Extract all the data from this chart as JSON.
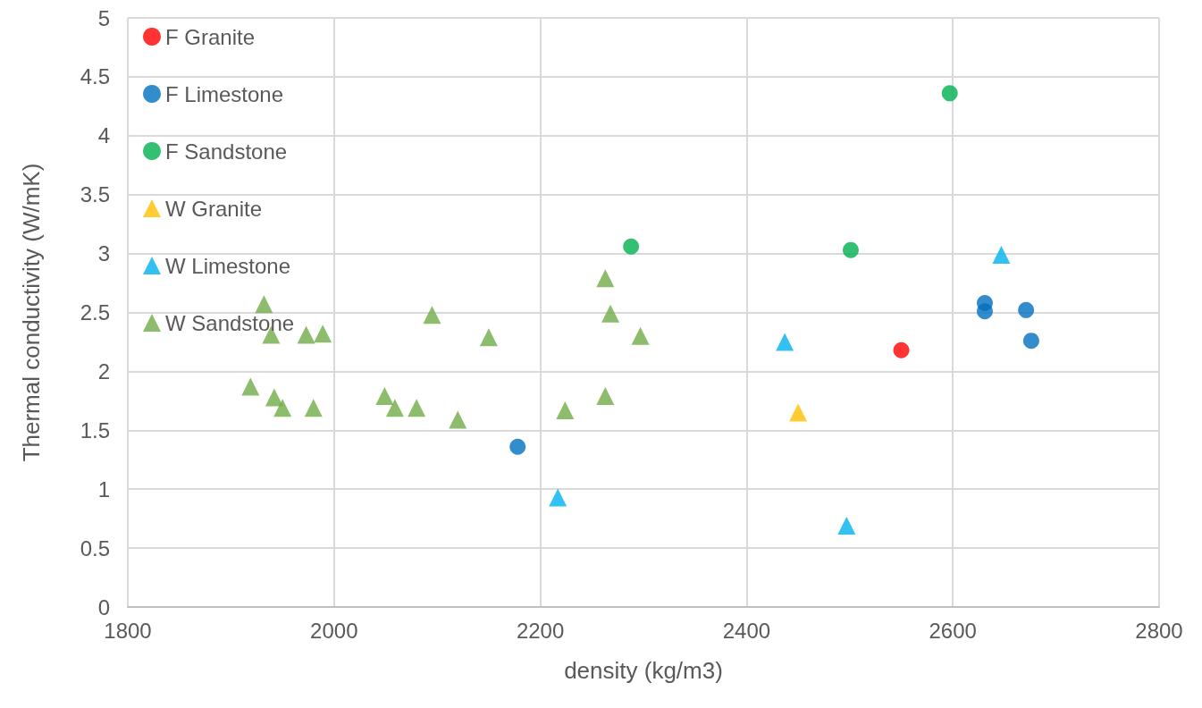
{
  "chart_data": {
    "type": "scatter",
    "xlabel": "density (kg/m3)",
    "ylabel": "Thermal conductivity (W/mK)",
    "xlim": [
      1800,
      2800
    ],
    "xticks": [
      1800,
      2000,
      2200,
      2400,
      2600,
      2800
    ],
    "ylim": [
      0,
      5
    ],
    "yticks": [
      0,
      0.5,
      1,
      1.5,
      2,
      2.5,
      3,
      3.5,
      4,
      4.5,
      5
    ],
    "grid": true,
    "legend": "top left",
    "series": [
      {
        "name": "F Granite",
        "color": "#ff0000",
        "marker": "circle",
        "x": [
          2550
        ],
        "values": [
          2.18
        ]
      },
      {
        "name": "F Limestone",
        "color": "#0070c0",
        "marker": "circle",
        "x": [
          2178,
          2631,
          2631,
          2671,
          2676
        ],
        "values": [
          1.36,
          2.58,
          2.51,
          2.52,
          2.26
        ]
      },
      {
        "name": "F Sandstone",
        "color": "#00b050",
        "marker": "circle",
        "x": [
          2288,
          2501,
          2597
        ],
        "values": [
          3.06,
          3.03,
          4.36
        ]
      },
      {
        "name": "W Granite",
        "color": "#ffc000",
        "marker": "triangle",
        "x": [
          2450
        ],
        "values": [
          1.65
        ]
      },
      {
        "name": "W Limestone",
        "color": "#00b0f0",
        "marker": "triangle",
        "x": [
          2217,
          2437,
          2497,
          2647
        ],
        "values": [
          0.93,
          2.25,
          0.69,
          2.99
        ]
      },
      {
        "name": "W Sandstone",
        "color": "#70ad47",
        "marker": "triangle",
        "x": [
          1932,
          1939,
          1973,
          1989,
          1919,
          1942,
          1950,
          1980,
          2095,
          2049,
          2059,
          2080,
          2120,
          2150,
          2224,
          2263,
          2263,
          2268,
          2297
        ],
        "values": [
          2.57,
          2.31,
          2.31,
          2.32,
          1.87,
          1.78,
          1.69,
          1.69,
          2.48,
          1.79,
          1.69,
          1.69,
          1.59,
          2.29,
          1.67,
          1.79,
          2.79,
          2.49,
          2.3
        ]
      }
    ]
  }
}
